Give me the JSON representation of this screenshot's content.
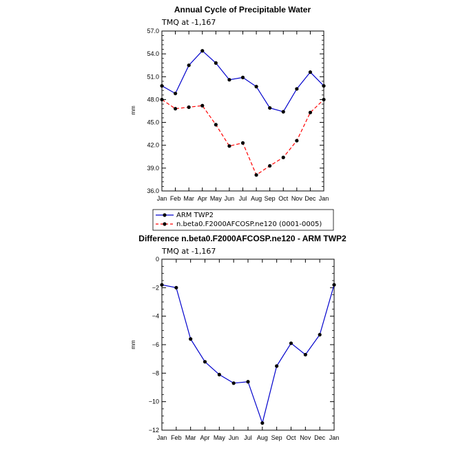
{
  "chart_data": [
    {
      "type": "line",
      "title": "Annual Cycle of Precipitable Water",
      "subtitle": "TMQ at -1,167",
      "xlabel": "",
      "ylabel": "mm",
      "categories": [
        "Jan",
        "Feb",
        "Mar",
        "Apr",
        "May",
        "Jun",
        "Jul",
        "Aug",
        "Sep",
        "Oct",
        "Nov",
        "Dec",
        "Jan"
      ],
      "ylim": [
        36.0,
        57.0
      ],
      "yticks": [
        36.0,
        39.0,
        42.0,
        45.0,
        48.0,
        51.0,
        54.0,
        57.0
      ],
      "ytick_labels": [
        "36.0",
        "39.0",
        "42.0",
        "45.0",
        "48.0",
        "51.0",
        "54.0",
        "57.0"
      ],
      "series": [
        {
          "name": "ARM TWP2",
          "color": "#0000cc",
          "style": "solid",
          "values": [
            49.8,
            48.8,
            52.5,
            54.4,
            52.8,
            50.6,
            50.9,
            49.7,
            46.9,
            46.4,
            49.4,
            51.6,
            49.8
          ]
        },
        {
          "name": "n.beta0.F2000AFCOSP.ne120 (0001-0005)",
          "color": "#ff0000",
          "style": "dashed",
          "values": [
            48.0,
            46.8,
            47.0,
            47.2,
            44.7,
            41.9,
            42.3,
            38.1,
            39.3,
            40.4,
            42.6,
            46.3,
            48.0
          ]
        }
      ],
      "legend": [
        "ARM TWP2",
        "n.beta0.F2000AFCOSP.ne120 (0001-0005)"
      ],
      "legend_position": "below"
    },
    {
      "type": "line",
      "title": "Difference n.beta0.F2000AFCOSP.ne120 - ARM TWP2",
      "subtitle": "TMQ at -1,167",
      "xlabel": "",
      "ylabel": "mm",
      "categories": [
        "Jan",
        "Feb",
        "Mar",
        "Apr",
        "May",
        "Jun",
        "Jul",
        "Aug",
        "Sep",
        "Oct",
        "Nov",
        "Dec",
        "Jan"
      ],
      "ylim": [
        -12,
        0
      ],
      "yticks": [
        -12,
        -10,
        -8,
        -6,
        -4,
        -2,
        0
      ],
      "ytick_labels": [
        "-12",
        "-10",
        "-8",
        "-6",
        "-4",
        "-2",
        "0"
      ],
      "series": [
        {
          "name": "difference",
          "color": "#0000cc",
          "style": "solid",
          "values": [
            -1.8,
            -2.0,
            -5.6,
            -7.2,
            -8.1,
            -8.7,
            -8.6,
            -11.5,
            -7.5,
            -5.9,
            -6.7,
            -5.3,
            -1.8
          ]
        }
      ]
    }
  ]
}
